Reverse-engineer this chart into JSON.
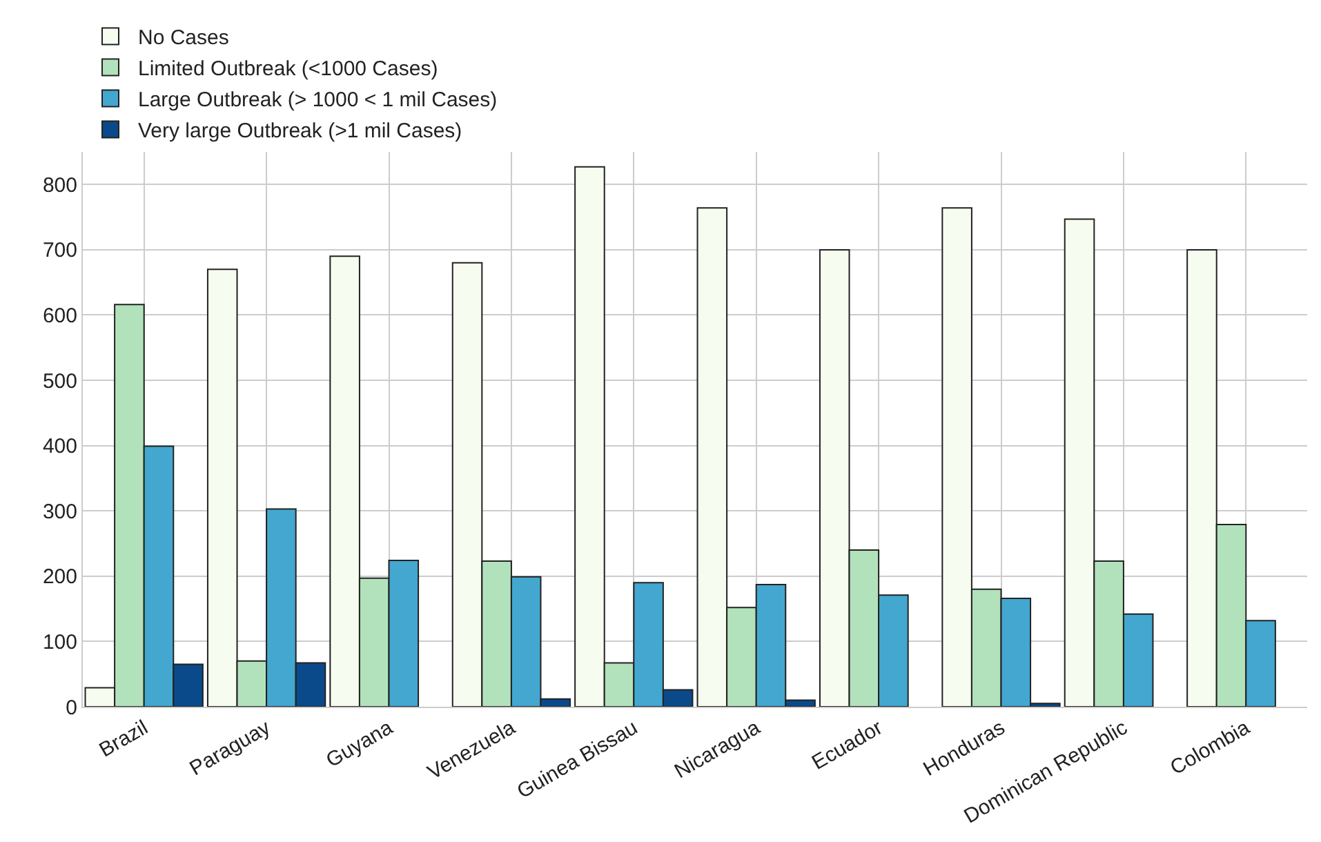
{
  "chart_data": {
    "type": "bar",
    "categories": [
      "Brazil",
      "Paraguay",
      "Guyana",
      "Venezuela",
      "Guinea Bissau",
      "Nicaragua",
      "Ecuador",
      "Honduras",
      "Dominican Republic",
      "Colombia"
    ],
    "series": [
      {
        "name": "No Cases",
        "color": "#f7fcf0",
        "values": [
          29,
          670,
          690,
          680,
          827,
          764,
          700,
          764,
          747,
          700
        ]
      },
      {
        "name": "Limited Outbreak (<1000 Cases)",
        "color": "#b2e2bc",
        "values": [
          616,
          70,
          197,
          223,
          67,
          152,
          240,
          180,
          223,
          279
        ]
      },
      {
        "name": "Large Outbreak (> 1000 < 1 mil Cases)",
        "color": "#43a7d0",
        "values": [
          399,
          303,
          224,
          199,
          190,
          187,
          171,
          166,
          142,
          132
        ]
      },
      {
        "name": "Very large Outbreak (>1 mil Cases)",
        "color": "#0a4a8a",
        "values": [
          65,
          67,
          0,
          12,
          26,
          10,
          0,
          5,
          0,
          0
        ]
      }
    ],
    "ylim": [
      0,
      850
    ],
    "yticks": [
      0,
      100,
      200,
      300,
      400,
      500,
      600,
      700,
      800
    ],
    "grid": true,
    "legend": "top left"
  }
}
